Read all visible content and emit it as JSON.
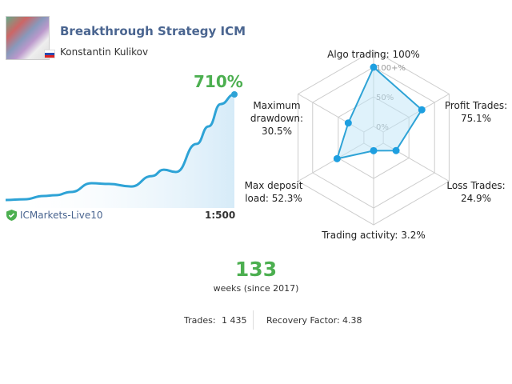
{
  "header": {
    "title": "Breakthrough Strategy ICM",
    "author": "Konstantin Kulikov",
    "flag_icon": "russia-flag-icon"
  },
  "growth": {
    "label": "710%",
    "color": "#4caf50",
    "line_color": "#2ea3d6",
    "chart_data": {
      "type": "area",
      "x": [
        0,
        11,
        22,
        29,
        38,
        50,
        60,
        73,
        85,
        92,
        99,
        111,
        118,
        125,
        133
      ],
      "values": [
        0,
        5,
        27,
        32,
        54,
        113,
        108,
        91,
        161,
        204,
        188,
        377,
        495,
        645,
        710
      ]
    }
  },
  "account": {
    "broker": "ICMarkets-Live10",
    "leverage": "1:500",
    "verified_icon": "shield-check-icon"
  },
  "radar": {
    "ring_labels": [
      "100+%",
      "50%",
      "0%"
    ],
    "chart_data": {
      "type": "radar",
      "axes": [
        {
          "label": "Algo trading: 100%",
          "value": 100
        },
        {
          "label": "Profit Trades: 75.1%",
          "value": 75.1
        },
        {
          "label": "Loss Trades: 24.9%",
          "value": 24.9
        },
        {
          "label": "Trading activity: 3.2%",
          "value": 3.2
        },
        {
          "label": "Max deposit load: 52.3%",
          "value": 52.3
        },
        {
          "label": "Maximum drawdown: 30.5%",
          "value": 30.5
        }
      ]
    }
  },
  "stats": {
    "weeks": "133",
    "weeks_label": "weeks (since 2017)",
    "trades_label": "Trades:",
    "trades": "1 435",
    "recovery_label": "Recovery Factor:",
    "recovery": "4.38"
  }
}
